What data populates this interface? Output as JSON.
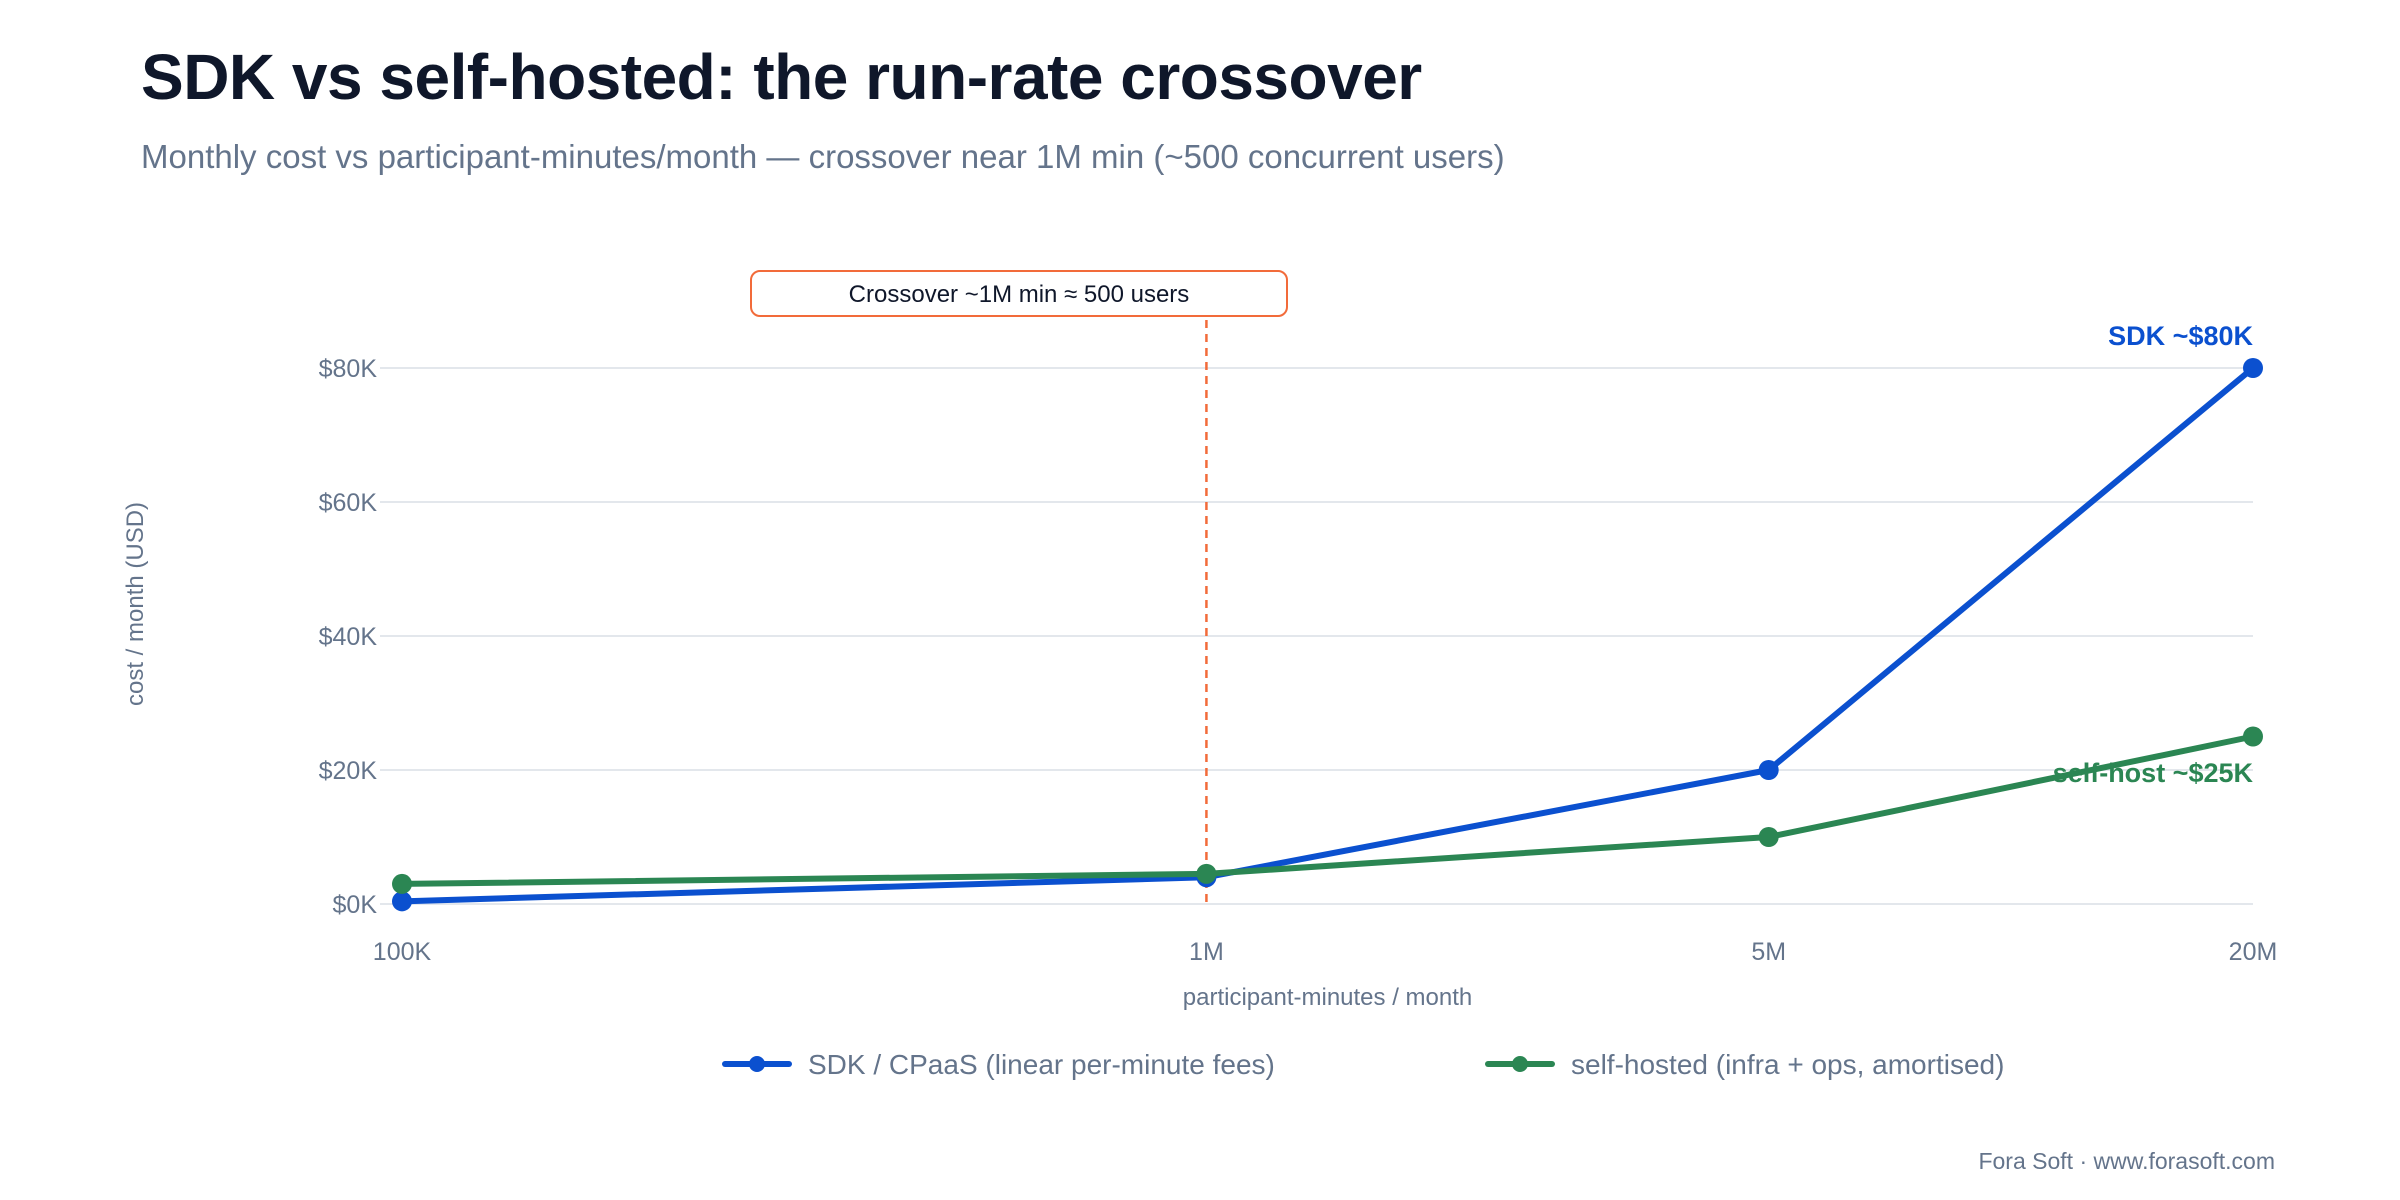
{
  "header": {
    "title": "SDK vs self-hosted: the run-rate crossover",
    "subtitle": "Monthly cost vs participant-minutes/month — crossover near 1M min (~500 concurrent users)"
  },
  "footer": {
    "text": "Fora Soft · www.forasoft.com"
  },
  "chart_data": {
    "type": "line",
    "x_scale": "log",
    "categories": [
      "100K",
      "1M",
      "5M",
      "20M"
    ],
    "x": [
      100000,
      1000000,
      5000000,
      20000000
    ],
    "xlabel": "participant-minutes / month",
    "ylabel": "cost / month (USD)",
    "ylim": [
      0,
      80000
    ],
    "yticks": [
      0,
      20000,
      40000,
      60000,
      80000
    ],
    "ytick_labels": [
      "$0K",
      "$20K",
      "$40K",
      "$60K",
      "$80K"
    ],
    "grid": true,
    "legend_position": "bottom",
    "series": [
      {
        "name": "SDK / CPaaS (linear per-minute fees)",
        "values": [
          400,
          4000,
          20000,
          80000
        ],
        "color": "#0b50cf",
        "end_label": "SDK ~$80K"
      },
      {
        "name": "self-hosted (infra + ops, amortised)",
        "values": [
          3000,
          4500,
          10000,
          25000
        ],
        "color": "#2b8653",
        "end_label": "self-host ~$25K"
      }
    ],
    "annotation": {
      "text": "Crossover ~1M min ≈ 500 users",
      "x": 1000000,
      "color": "#f26b3a"
    }
  }
}
